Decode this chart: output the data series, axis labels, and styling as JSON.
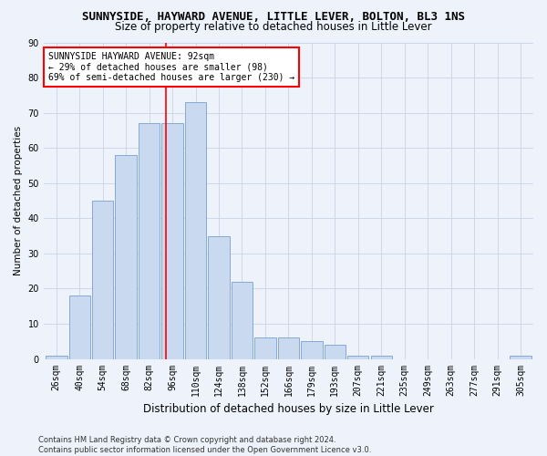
{
  "title": "SUNNYSIDE, HAYWARD AVENUE, LITTLE LEVER, BOLTON, BL3 1NS",
  "subtitle": "Size of property relative to detached houses in Little Lever",
  "xlabel": "Distribution of detached houses by size in Little Lever",
  "ylabel": "Number of detached properties",
  "categories": [
    "26sqm",
    "40sqm",
    "54sqm",
    "68sqm",
    "82sqm",
    "96sqm",
    "110sqm",
    "124sqm",
    "138sqm",
    "152sqm",
    "166sqm",
    "179sqm",
    "193sqm",
    "207sqm",
    "221sqm",
    "235sqm",
    "249sqm",
    "263sqm",
    "277sqm",
    "291sqm",
    "305sqm"
  ],
  "values": [
    1,
    18,
    45,
    58,
    67,
    67,
    73,
    35,
    22,
    6,
    6,
    5,
    4,
    1,
    1,
    0,
    0,
    0,
    0,
    0,
    1
  ],
  "bar_color": "#c8d9f0",
  "bar_edge_color": "#85aad4",
  "annotation_text": "SUNNYSIDE HAYWARD AVENUE: 92sqm\n← 29% of detached houses are smaller (98)\n69% of semi-detached houses are larger (230) →",
  "annotation_box_color": "white",
  "annotation_box_edge_color": "red",
  "vline_color": "red",
  "ylim": [
    0,
    90
  ],
  "yticks": [
    0,
    10,
    20,
    30,
    40,
    50,
    60,
    70,
    80,
    90
  ],
  "grid_color": "#c8d4e8",
  "background_color": "#eef2fb",
  "footnote": "Contains HM Land Registry data © Crown copyright and database right 2024.\nContains public sector information licensed under the Open Government Licence v3.0.",
  "title_fontsize": 9,
  "subtitle_fontsize": 8.5,
  "xlabel_fontsize": 8.5,
  "ylabel_fontsize": 7.5,
  "tick_fontsize": 7,
  "annotation_fontsize": 7,
  "footnote_fontsize": 6
}
